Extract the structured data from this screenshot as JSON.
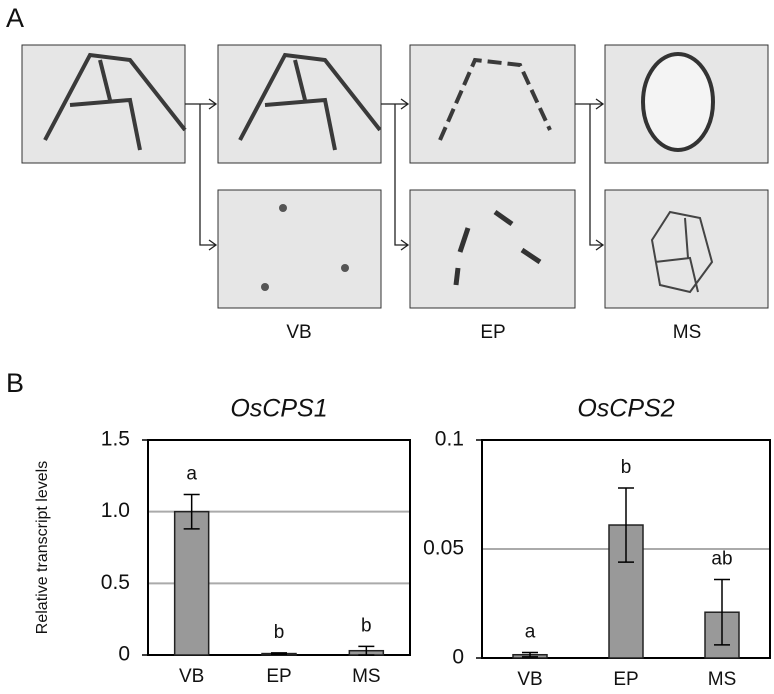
{
  "panel_labels": [
    "A",
    "B"
  ],
  "micrograph_labels": [
    "VB",
    "EP",
    "MS"
  ],
  "chart_data": [
    {
      "type": "bar",
      "title": "OsCPS1",
      "y_label": "Relative transcript levels",
      "categories": [
        "VB",
        "EP",
        "MS"
      ],
      "values": [
        1.0,
        0.01,
        0.03
      ],
      "errors": [
        0.12,
        0.005,
        0.03
      ],
      "letters": [
        "a",
        "b",
        "b"
      ],
      "color": "#999999",
      "ylim": [
        0,
        1.5
      ],
      "yticks": [
        0,
        0.5,
        {
          "value": 1,
          "label": "1.0"
        },
        1.5
      ],
      "grid": true
    },
    {
      "type": "bar",
      "title": "OsCPS2",
      "categories": [
        "VB",
        "EP",
        "MS"
      ],
      "values": [
        0.0015,
        0.061,
        0.021
      ],
      "errors": [
        0.001,
        0.017,
        0.015
      ],
      "letters": [
        "a",
        "b",
        "ab"
      ],
      "color": "#999999",
      "ylim": [
        0,
        0.1
      ],
      "yticks": [
        0,
        0.05,
        0.1
      ],
      "grid": true
    }
  ]
}
